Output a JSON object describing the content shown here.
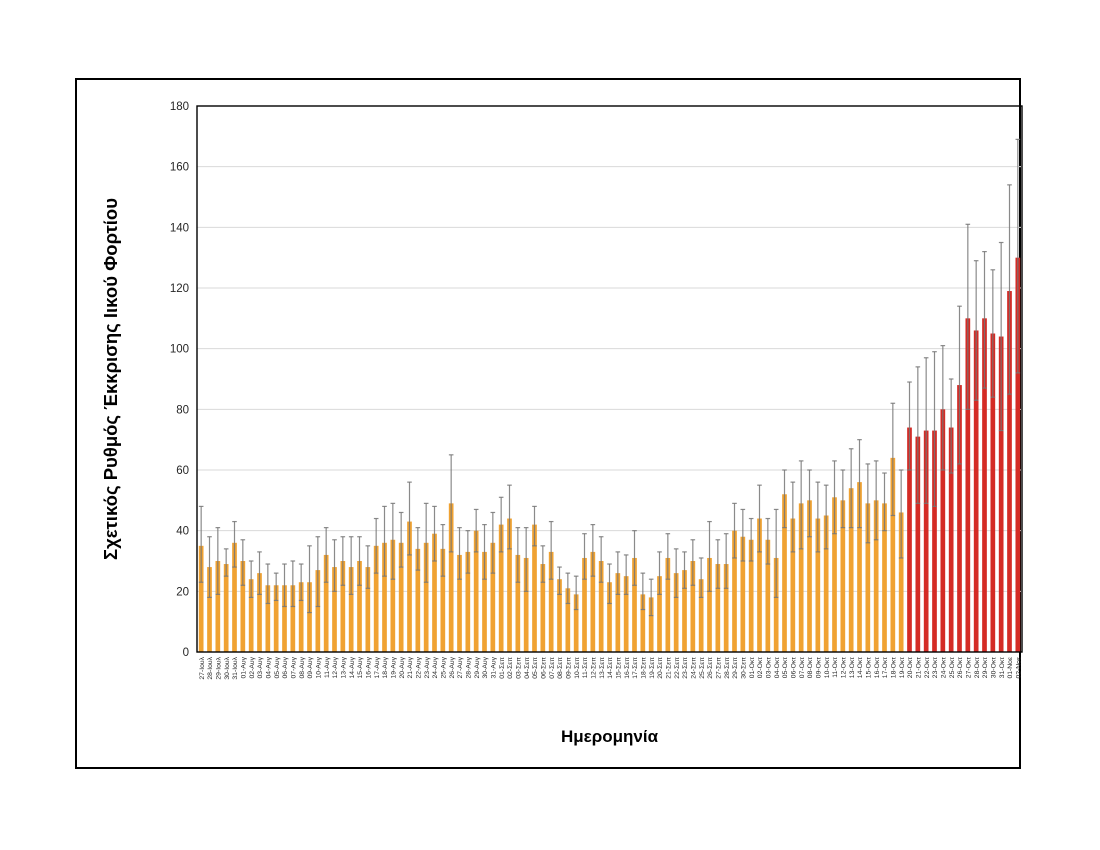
{
  "chart_data": {
    "type": "bar",
    "title": "",
    "ylabel": "Σχετικός Ρυθμός Έκκρισης Ιικού Φορτίου",
    "xlabel": "Ημερομηνία",
    "ylim": [
      0,
      180
    ],
    "yticks": [
      0,
      20,
      40,
      60,
      80,
      100,
      120,
      140,
      160,
      180
    ],
    "grid": "horizontal",
    "legend": "none",
    "red_start_index": 85,
    "red_start_label": "20-Οκτ",
    "colors": {
      "bar_orange": "#F0A232",
      "bar_red": "#D42B25",
      "error_bar": "#757575",
      "gridline": "#D9D9D9",
      "axis": "#000000"
    },
    "categories": [
      "27-Ιουλ",
      "28-Ιουλ",
      "29-Ιουλ",
      "30-Ιουλ",
      "31-Ιουλ",
      "01-Αυγ",
      "02-Αυγ",
      "03-Αυγ",
      "04-Αυγ",
      "05-Αυγ",
      "06-Αυγ",
      "07-Αυγ",
      "08-Αυγ",
      "09-Αυγ",
      "10-Αυγ",
      "11-Αυγ",
      "12-Αυγ",
      "13-Αυγ",
      "14-Αυγ",
      "15-Αυγ",
      "16-Αυγ",
      "17-Αυγ",
      "18-Αυγ",
      "19-Αυγ",
      "20-Αυγ",
      "21-Αυγ",
      "22-Αυγ",
      "23-Αυγ",
      "24-Αυγ",
      "25-Αυγ",
      "26-Αυγ",
      "27-Αυγ",
      "28-Αυγ",
      "29-Αυγ",
      "30-Αυγ",
      "31-Αυγ",
      "01-Σεπ",
      "02-Σεπ",
      "03-Σεπ",
      "04-Σεπ",
      "05-Σεπ",
      "06-Σεπ",
      "07-Σεπ",
      "08-Σεπ",
      "09-Σεπ",
      "10-Σεπ",
      "11-Σεπ",
      "12-Σεπ",
      "13-Σεπ",
      "14-Σεπ",
      "15-Σεπ",
      "16-Σεπ",
      "17-Σεπ",
      "18-Σεπ",
      "19-Σεπ",
      "20-Σεπ",
      "21-Σεπ",
      "22-Σεπ",
      "23-Σεπ",
      "24-Σεπ",
      "25-Σεπ",
      "26-Σεπ",
      "27-Σεπ",
      "28-Σεπ",
      "29-Σεπ",
      "30-Σεπ",
      "01-Οκτ",
      "02-Οκτ",
      "03-Οκτ",
      "04-Οκτ",
      "05-Οκτ",
      "06-Οκτ",
      "07-Οκτ",
      "08-Οκτ",
      "09-Οκτ",
      "10-Οκτ",
      "11-Οκτ",
      "12-Οκτ",
      "13-Οκτ",
      "14-Οκτ",
      "15-Οκτ",
      "16-Οκτ",
      "17-Οκτ",
      "18-Οκτ",
      "19-Οκτ",
      "20-Οκτ",
      "21-Οκτ",
      "22-Οκτ",
      "23-Οκτ",
      "24-Οκτ",
      "25-Οκτ",
      "26-Οκτ",
      "27-Οκτ",
      "28-Οκτ",
      "29-Οκτ",
      "30-Οκτ",
      "31-Οκτ",
      "01-Νοε",
      "02-Νοε"
    ],
    "series": [
      {
        "name": "Σχετικός Ρυθμός Έκκρισης Ιικού Φορτίου",
        "values": [
          35,
          28,
          30,
          29,
          36,
          30,
          24,
          26,
          22,
          22,
          22,
          22,
          23,
          23,
          27,
          32,
          28,
          30,
          28,
          30,
          28,
          35,
          36,
          37,
          36,
          43,
          34,
          36,
          39,
          34,
          49,
          32,
          33,
          40,
          33,
          36,
          42,
          44,
          32,
          31,
          42,
          29,
          33,
          24,
          21,
          19,
          31,
          33,
          30,
          23,
          26,
          25,
          31,
          19,
          18,
          25,
          31,
          26,
          27,
          30,
          24,
          31,
          29,
          29,
          40,
          38,
          37,
          44,
          37,
          31,
          52,
          44,
          49,
          50,
          44,
          45,
          51,
          50,
          54,
          56,
          49,
          50,
          49,
          64,
          46,
          74,
          71,
          73,
          73,
          80,
          74,
          88,
          110,
          106,
          110,
          105,
          104,
          119,
          130
        ]
      }
    ],
    "error_high": [
      48,
      38,
      41,
      34,
      43,
      37,
      30,
      33,
      29,
      26,
      29,
      30,
      29,
      35,
      38,
      41,
      37,
      38,
      38,
      38,
      35,
      44,
      48,
      49,
      46,
      56,
      41,
      49,
      48,
      42,
      65,
      41,
      40,
      47,
      42,
      46,
      51,
      55,
      41,
      41,
      48,
      35,
      43,
      28,
      26,
      25,
      39,
      42,
      38,
      29,
      33,
      32,
      40,
      26,
      24,
      33,
      39,
      34,
      33,
      37,
      31,
      43,
      37,
      39,
      49,
      47,
      44,
      55,
      44,
      47,
      60,
      56,
      63,
      60,
      56,
      55,
      63,
      60,
      67,
      70,
      62,
      63,
      59,
      82,
      60,
      89,
      94,
      97,
      99,
      101,
      90,
      114,
      141,
      129,
      132,
      126,
      135,
      154,
      169
    ],
    "error_low": [
      23,
      18,
      19,
      25,
      28,
      22,
      18,
      19,
      16,
      17,
      15,
      15,
      17,
      13,
      15,
      23,
      20,
      22,
      19,
      22,
      21,
      26,
      25,
      24,
      28,
      32,
      27,
      23,
      30,
      25,
      33,
      24,
      26,
      33,
      24,
      26,
      33,
      34,
      23,
      20,
      35,
      23,
      24,
      19,
      16,
      14,
      24,
      25,
      23,
      16,
      19,
      19,
      22,
      14,
      12,
      19,
      24,
      18,
      21,
      22,
      18,
      20,
      21,
      21,
      31,
      30,
      30,
      33,
      29,
      18,
      41,
      33,
      34,
      38,
      33,
      34,
      39,
      41,
      41,
      41,
      36,
      37,
      40,
      45,
      31,
      60,
      49,
      49,
      48,
      60,
      59,
      62,
      80,
      83,
      87,
      84,
      73,
      85,
      92
    ]
  }
}
